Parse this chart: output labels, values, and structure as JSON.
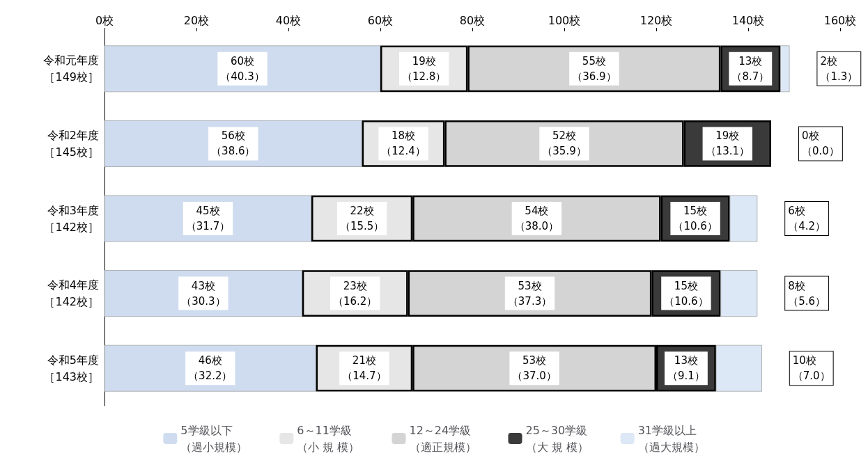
{
  "chart_data": {
    "type": "bar",
    "orientation": "horizontal",
    "stacked": true,
    "categories": [
      "令和元年度［149校］",
      "令和2年度［145校］",
      "令和3年度［142校］",
      "令和4年度［142校］",
      "令和5年度［143校］"
    ],
    "series": [
      {
        "name": "5学級以下（過小規模）",
        "color": "#cfdcef",
        "values": [
          60,
          56,
          45,
          43,
          46
        ],
        "value_labels": [
          "60校（40.3）",
          "56校（38.6）",
          "45校（31.7）",
          "43校（30.3）",
          "46校（32.2）"
        ]
      },
      {
        "name": "6～11学級（小 規 模）",
        "color": "#e6e6e6",
        "values": [
          19,
          18,
          22,
          23,
          21
        ],
        "value_labels": [
          "19校（12.8）",
          "18校（12.4）",
          "22校（15.5）",
          "23校（16.2）",
          "21校（14.7）"
        ]
      },
      {
        "name": "12～24学級（適正規模）",
        "color": "#d4d4d4",
        "values": [
          55,
          52,
          54,
          53,
          53
        ],
        "value_labels": [
          "55校（36.9）",
          "52校（35.9）",
          "54校（38.0）",
          "53校（37.3）",
          "53校（37.0）"
        ]
      },
      {
        "name": "25～30学級（大 規 模）",
        "color": "#3a3a3a",
        "values": [
          13,
          19,
          15,
          15,
          13
        ],
        "value_labels": [
          "13校（8.7）",
          "19校（13.1）",
          "15校（10.6）",
          "15校（10.6）",
          "13校（9.1）"
        ]
      },
      {
        "name": "31学級以上（過大規模）",
        "color": "#dde8f6",
        "values": [
          2,
          0,
          6,
          8,
          10
        ],
        "value_labels": [
          "2校（1.3）",
          "0校（0.0）",
          "6校（4.2）",
          "8校（5.6）",
          "10校（7.0）"
        ]
      }
    ],
    "xlim": [
      0,
      160
    ],
    "xticks": [
      {
        "value": 0,
        "label": "0校"
      },
      {
        "value": 20,
        "label": "20校"
      },
      {
        "value": 40,
        "label": "40校"
      },
      {
        "value": 60,
        "label": "60校"
      },
      {
        "value": 80,
        "label": "80校"
      },
      {
        "value": 100,
        "label": "100校"
      },
      {
        "value": 120,
        "label": "120校"
      },
      {
        "value": 140,
        "label": "140校"
      },
      {
        "value": 160,
        "label": "160校"
      }
    ],
    "legend": "bottom"
  }
}
